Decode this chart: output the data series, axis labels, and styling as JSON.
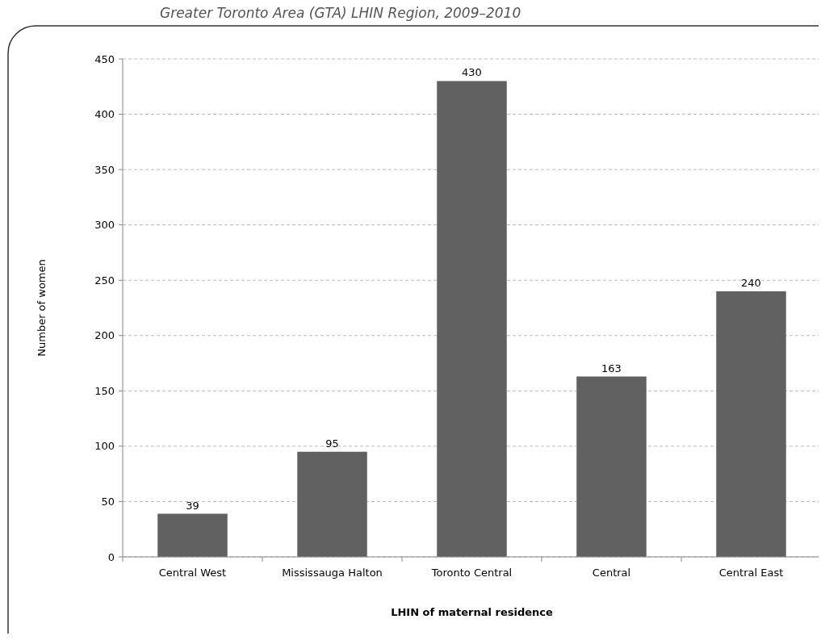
{
  "chart_data": {
    "type": "bar",
    "title": "Greater Toronto Area (GTA) LHIN Region, 2009–2010",
    "xlabel": "LHIN of maternal residence",
    "ylabel": "Number of women",
    "categories": [
      "Central West",
      "Mississauga Halton",
      "Toronto Central",
      "Central",
      "Central East"
    ],
    "values": [
      39,
      95,
      430,
      163,
      240
    ],
    "color": "#616161",
    "ylim": [
      0,
      450
    ],
    "yticks": [
      0,
      50,
      100,
      150,
      200,
      250,
      300,
      350,
      400,
      450
    ],
    "grid": "y",
    "data_labels": true
  }
}
